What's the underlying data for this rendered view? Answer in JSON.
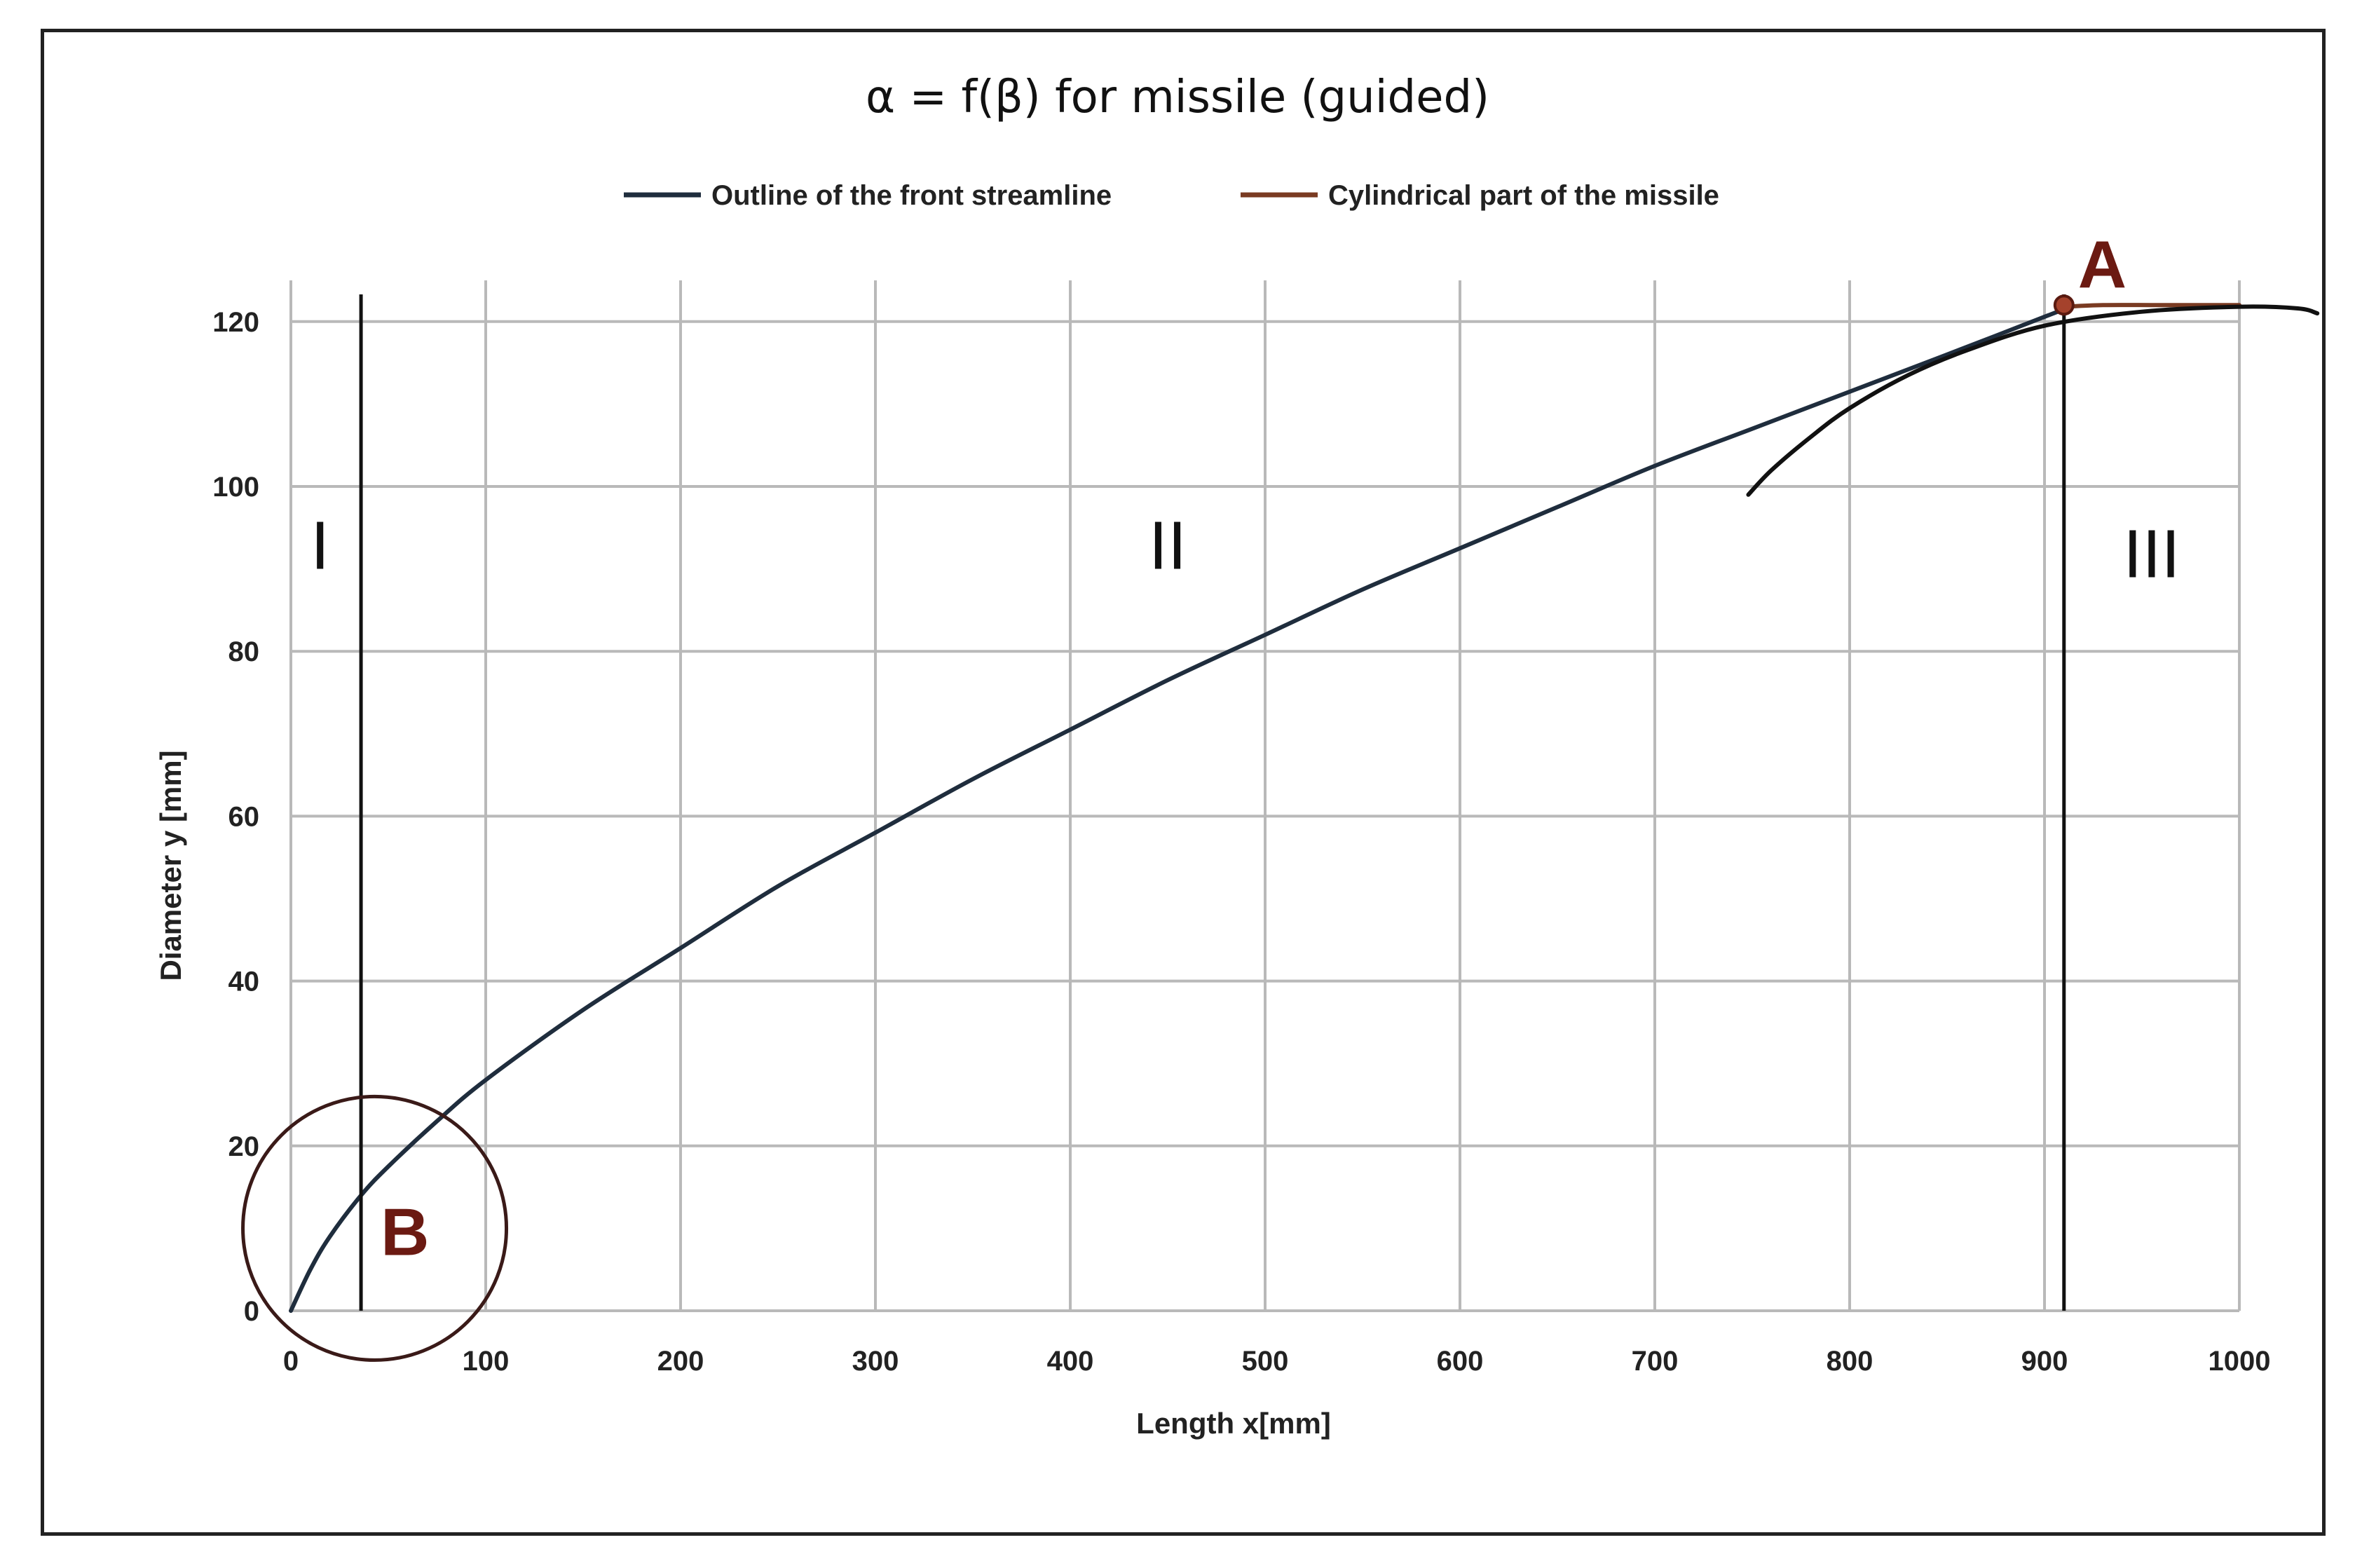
{
  "chart_data": {
    "type": "line",
    "title": "α = f(β) for missile (guided)",
    "xlabel": "Length x[mm]",
    "ylabel": "Diameter y [mm]",
    "xlim": [
      0,
      1000
    ],
    "ylim": [
      0,
      120
    ],
    "x_ticks": [
      "0",
      "100",
      "200",
      "300",
      "400",
      "500",
      "600",
      "700",
      "800",
      "900",
      "1000"
    ],
    "y_ticks": [
      "0",
      "20",
      "40",
      "60",
      "80",
      "100",
      "120"
    ],
    "grid": true,
    "legend_position": "top",
    "series": [
      {
        "name": "Outline of the front streamline",
        "color": "#1f2d3d",
        "x": [
          0,
          10,
          20,
          36,
          50,
          75,
          100,
          150,
          200,
          250,
          300,
          350,
          400,
          450,
          500,
          550,
          600,
          650,
          700,
          750,
          800,
          850,
          910
        ],
        "y": [
          0,
          5,
          9,
          14,
          17.5,
          23,
          28,
          36.5,
          44,
          51.5,
          58,
          64.5,
          70.5,
          76.5,
          82,
          87.5,
          92.5,
          97.5,
          102.5,
          107,
          111.5,
          116,
          121.5
        ]
      },
      {
        "name": "Cylindrical part of the missile",
        "color": "#7a3b22",
        "x": [
          910,
          930,
          960,
          1000
        ],
        "y": [
          121.8,
          122,
          122,
          122
        ]
      },
      {
        "name": "",
        "color": "#111111",
        "x": [
          748,
          760,
          780,
          800,
          830,
          860,
          900,
          950,
          1000,
          1030,
          1040
        ],
        "y": [
          99,
          102,
          106,
          109.5,
          113.5,
          116.5,
          119.5,
          121.2,
          121.8,
          121.6,
          121
        ]
      }
    ],
    "vertical_lines": [
      {
        "x": 36,
        "color": "#111111"
      },
      {
        "x": 910,
        "color": "#111111"
      }
    ],
    "regions": [
      {
        "label": "I",
        "x": 15,
        "y": 90
      },
      {
        "label": "II",
        "x": 450,
        "y": 90
      },
      {
        "label": "III",
        "x": 955,
        "y": 89
      }
    ],
    "points": [
      {
        "label": "A",
        "x": 910,
        "y": 122,
        "color": "#6b1a12"
      },
      {
        "label": "B",
        "x": 36,
        "y": 14,
        "color": "#6b1a12"
      }
    ]
  }
}
